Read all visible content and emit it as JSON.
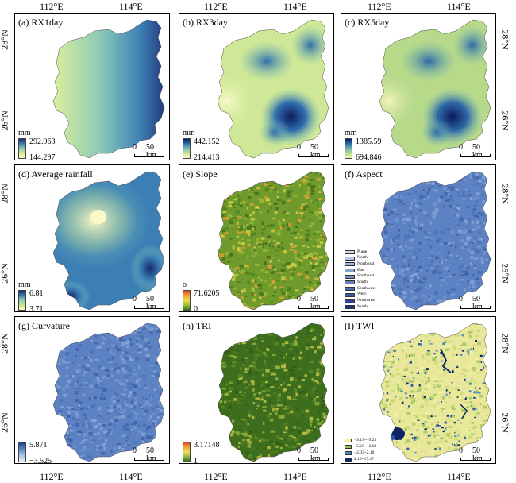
{
  "axes": {
    "top_ticks": [
      "112°E",
      "114°E"
    ],
    "bottom_ticks": [
      "112°E",
      "114°E"
    ],
    "left_ticks": [
      "28°N",
      "26°N"
    ],
    "right_ticks": [
      "28°N",
      "26°N"
    ]
  },
  "scale_bar": {
    "zero": "0",
    "distance": "50 km"
  },
  "panels": [
    {
      "title": "(a) RX1day",
      "legend": {
        "unit": "mm",
        "max": "292.963",
        "min": "144.297",
        "colors": [
          "#1d2a6e",
          "#3d82b5",
          "#8cc9b8",
          "#d9ef9a",
          "#f5f7c2"
        ]
      },
      "fill": "gradient_ew"
    },
    {
      "title": "(b) RX3day",
      "legend": {
        "unit": "mm",
        "max": "442.152",
        "min": "214.413",
        "colors": [
          "#0d1d5e",
          "#2f6ead",
          "#7ebcb3",
          "#cfe897",
          "#f7f9c7"
        ]
      },
      "fill": "blobs"
    },
    {
      "title": "(c) RX5day",
      "legend": {
        "unit": "mm",
        "max": "1385.59",
        "min": "694.846",
        "colors": [
          "#0a1a58",
          "#2e69a8",
          "#77b6b3",
          "#b6d98a",
          "#f2f5b8"
        ]
      },
      "fill": "blobs"
    },
    {
      "title": "(d) Average rainfall",
      "legend": {
        "unit": "mm",
        "max": "6.81",
        "min": "3.71",
        "colors": [
          "#17296b",
          "#3b7fb5",
          "#8ccbb5",
          "#c3e48a",
          "#fbf9c8"
        ]
      },
      "fill": "center_light"
    },
    {
      "title": "(e) Slope",
      "legend": {
        "unit": "o",
        "max": "71.6205",
        "min": "0",
        "colors": [
          "#e04a1c",
          "#f2a23a",
          "#e9dc4a",
          "#9bbf3a",
          "#3c7b1e"
        ]
      },
      "fill": "noise_green"
    },
    {
      "title": "(f) Aspect",
      "fill": "noise_blue",
      "categories": [
        {
          "label": "Plane",
          "color": "#cfdcef"
        },
        {
          "label": "North",
          "color": "#b3c8e6"
        },
        {
          "label": "Northeast",
          "color": "#9cb5dc"
        },
        {
          "label": "East",
          "color": "#86a2d2"
        },
        {
          "label": "Southeast",
          "color": "#7590c8"
        },
        {
          "label": "South",
          "color": "#607fbf"
        },
        {
          "label": "Southwest",
          "color": "#4d6cb2"
        },
        {
          "label": "West",
          "color": "#3b58a2"
        },
        {
          "label": "Northwest",
          "color": "#2b4690"
        },
        {
          "label": "North",
          "color": "#1d357d"
        }
      ]
    },
    {
      "title": "(g) Curvature",
      "legend": {
        "unit": "",
        "max": "5.871",
        "min": "−3.525",
        "colors": [
          "#1d3e8a",
          "#5580c2",
          "#a9c2e6",
          "#e7eef8"
        ]
      },
      "fill": "noise_blue"
    },
    {
      "title": "(h) TRI",
      "legend": {
        "unit": "",
        "max": "3.17148",
        "min": "1",
        "colors": [
          "#d2472a",
          "#f0a53a",
          "#e9e257",
          "#8ab843",
          "#2f6b1a"
        ]
      },
      "fill": "noise_darkgreen"
    },
    {
      "title": "(I) TWI",
      "fill": "noise_yellow",
      "categories": [
        {
          "label": "−9.15~−5.23",
          "color": "#f3f0a2"
        },
        {
          "label": "−5.23~−2.03",
          "color": "#8dc35c"
        },
        {
          "label": "−2.03~2.10",
          "color": "#4c8cc2"
        },
        {
          "label": "2.10~17.17",
          "color": "#0f2466"
        }
      ]
    }
  ]
}
